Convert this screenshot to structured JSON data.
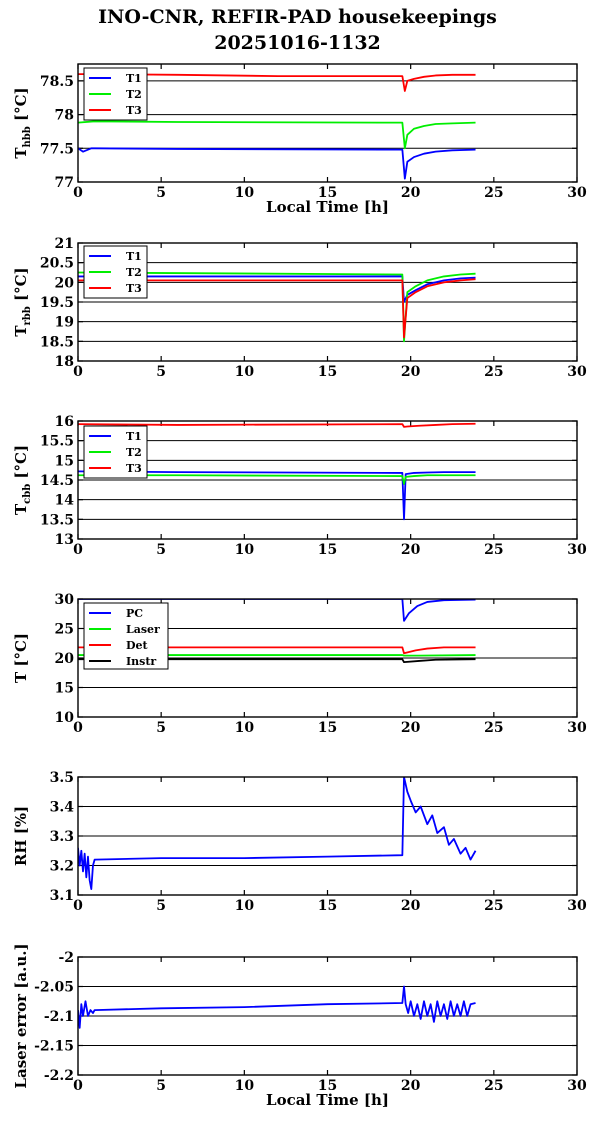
{
  "title": {
    "line1": "INO-CNR, REFIR-PAD housekeepings",
    "line2": "20251016-1132"
  },
  "chart_data": [
    {
      "type": "line",
      "ylabel": "T",
      "ylabel_sub": "hbb",
      "ylabel_unit": "[°C]",
      "xlabel": "Local Time [h]",
      "xlim": [
        0,
        30
      ],
      "ylim": [
        77,
        78.75
      ],
      "xticks": [
        0,
        5,
        10,
        15,
        20,
        25,
        30
      ],
      "yticks": [
        77,
        77.5,
        78,
        78.5
      ],
      "ytick_labels": [
        "77",
        "77.5",
        "78",
        "78.5"
      ],
      "grid": true,
      "legend": "top-left",
      "series": [
        {
          "name": "T1",
          "color": "#0000ff",
          "x": [
            0,
            0.3,
            0.8,
            1,
            6,
            19.5,
            19.65,
            19.8,
            20.2,
            20.8,
            21.5,
            22.5,
            23.9
          ],
          "y": [
            77.5,
            77.45,
            77.5,
            77.5,
            77.49,
            77.48,
            77.05,
            77.3,
            77.37,
            77.42,
            77.45,
            77.47,
            77.48
          ]
        },
        {
          "name": "T2",
          "color": "#00ee00",
          "x": [
            0,
            1,
            6,
            19.5,
            19.65,
            19.8,
            20.2,
            20.8,
            21.5,
            22.5,
            23.9
          ],
          "y": [
            77.88,
            77.9,
            77.89,
            77.88,
            77.5,
            77.7,
            77.79,
            77.83,
            77.86,
            77.87,
            77.88
          ]
        },
        {
          "name": "T3",
          "color": "#ff0000",
          "x": [
            0,
            1,
            6,
            12,
            19.5,
            19.65,
            19.8,
            20.2,
            20.8,
            21.5,
            22.5,
            23.9
          ],
          "y": [
            78.6,
            78.6,
            78.59,
            78.57,
            78.57,
            78.35,
            78.5,
            78.53,
            78.56,
            78.58,
            78.59,
            78.59
          ]
        }
      ]
    },
    {
      "type": "line",
      "ylabel": "T",
      "ylabel_sub": "rbb",
      "ylabel_unit": "[°C]",
      "xlabel": "",
      "xlim": [
        0,
        30
      ],
      "ylim": [
        18,
        21
      ],
      "xticks": [
        0,
        5,
        10,
        15,
        20,
        25,
        30
      ],
      "yticks": [
        18,
        18.5,
        19,
        19.5,
        20,
        20.5,
        21
      ],
      "ytick_labels": [
        "18",
        "18.5",
        "19",
        "19.5",
        "20",
        "20.5",
        "21"
      ],
      "grid": true,
      "legend": "top-left",
      "series": [
        {
          "name": "T1",
          "color": "#0000ff",
          "x": [
            0,
            19.5,
            19.6,
            19.8,
            20.3,
            21,
            22,
            23,
            23.9
          ],
          "y": [
            20.15,
            20.15,
            19.5,
            19.68,
            19.8,
            19.95,
            20.05,
            20.1,
            20.12
          ]
        },
        {
          "name": "T2",
          "color": "#00ee00",
          "x": [
            0,
            19.5,
            19.6,
            19.8,
            20.3,
            21,
            22,
            23,
            23.9
          ],
          "y": [
            20.25,
            20.2,
            18.5,
            19.75,
            19.9,
            20.05,
            20.15,
            20.2,
            20.22
          ]
        },
        {
          "name": "T3",
          "color": "#ff0000",
          "x": [
            0,
            19.5,
            19.6,
            19.8,
            20.3,
            21,
            22,
            23,
            23.9
          ],
          "y": [
            20.05,
            20.05,
            18.6,
            19.6,
            19.75,
            19.9,
            20.0,
            20.05,
            20.08
          ]
        }
      ]
    },
    {
      "type": "line",
      "ylabel": "T",
      "ylabel_sub": "cbb",
      "ylabel_unit": "[°C]",
      "xlabel": "",
      "xlim": [
        0,
        30
      ],
      "ylim": [
        13,
        16
      ],
      "xticks": [
        0,
        5,
        10,
        15,
        20,
        25,
        30
      ],
      "yticks": [
        13,
        13.5,
        14,
        14.5,
        15,
        15.5,
        16
      ],
      "ytick_labels": [
        "13",
        "13.5",
        "14",
        "14.5",
        "15",
        "15.5",
        "16"
      ],
      "grid": true,
      "legend": "top-left",
      "series": [
        {
          "name": "T1",
          "color": "#0000ff",
          "x": [
            0,
            6,
            19.5,
            19.6,
            19.7,
            20.2,
            21,
            22,
            23.9
          ],
          "y": [
            14.72,
            14.7,
            14.68,
            13.5,
            14.65,
            14.68,
            14.69,
            14.7,
            14.7
          ]
        },
        {
          "name": "T2",
          "color": "#00ee00",
          "x": [
            0,
            6,
            19.5,
            19.6,
            19.7,
            20.2,
            21,
            22,
            23.9
          ],
          "y": [
            14.62,
            14.62,
            14.6,
            14.4,
            14.58,
            14.6,
            14.62,
            14.62,
            14.62
          ]
        },
        {
          "name": "T3",
          "color": "#ff0000",
          "x": [
            0,
            6,
            19.5,
            19.6,
            19.8,
            20.5,
            21.5,
            22.5,
            23.9
          ],
          "y": [
            15.92,
            15.9,
            15.92,
            15.85,
            15.86,
            15.88,
            15.9,
            15.92,
            15.93
          ]
        }
      ]
    },
    {
      "type": "line",
      "ylabel": "T [°C]",
      "ylabel_sub": "",
      "ylabel_unit": "",
      "xlabel": "",
      "xlim": [
        0,
        30
      ],
      "ylim": [
        10,
        30
      ],
      "xticks": [
        0,
        5,
        10,
        15,
        20,
        25,
        30
      ],
      "yticks": [
        10,
        15,
        20,
        25,
        30
      ],
      "ytick_labels": [
        "10",
        "15",
        "20",
        "25",
        "30"
      ],
      "grid": true,
      "legend": "top-left",
      "series": [
        {
          "name": "PC",
          "color": "#0000ff",
          "x": [
            0,
            19.5,
            19.6,
            19.9,
            20.4,
            21,
            22,
            23.9
          ],
          "y": [
            30,
            30,
            26.3,
            27.6,
            28.8,
            29.5,
            29.8,
            29.9
          ]
        },
        {
          "name": "Laser",
          "color": "#00ee00",
          "x": [
            0,
            19.5,
            19.6,
            20.5,
            23.9
          ],
          "y": [
            20.5,
            20.5,
            20.4,
            20.4,
            20.5
          ]
        },
        {
          "name": "Det",
          "color": "#ff0000",
          "x": [
            0,
            12,
            19.5,
            19.6,
            20.3,
            21,
            22,
            23.9
          ],
          "y": [
            21.8,
            21.8,
            21.8,
            20.8,
            21.3,
            21.6,
            21.8,
            21.8
          ]
        },
        {
          "name": "Instr",
          "color": "#000000",
          "x": [
            0,
            19.5,
            19.6,
            20.5,
            21.5,
            23.9
          ],
          "y": [
            19.8,
            19.8,
            19.3,
            19.5,
            19.7,
            19.8
          ]
        }
      ]
    },
    {
      "type": "line",
      "ylabel": "RH [%]",
      "ylabel_sub": "",
      "ylabel_unit": "",
      "xlabel": "",
      "xlim": [
        0,
        30
      ],
      "ylim": [
        3.1,
        3.5
      ],
      "xticks": [
        0,
        5,
        10,
        15,
        20,
        25,
        30
      ],
      "yticks": [
        3.1,
        3.2,
        3.3,
        3.4,
        3.5
      ],
      "ytick_labels": [
        "3.1",
        "3.2",
        "3.3",
        "3.4",
        "3.5"
      ],
      "grid": true,
      "legend": "none",
      "series": [
        {
          "name": "",
          "color": "#0000ff",
          "x": [
            0,
            0.1,
            0.2,
            0.3,
            0.4,
            0.5,
            0.6,
            0.7,
            0.8,
            0.9,
            1,
            5,
            10,
            15,
            19.5,
            19.6,
            19.8,
            20,
            20.3,
            20.6,
            21,
            21.3,
            21.6,
            22,
            22.3,
            22.6,
            23,
            23.3,
            23.6,
            23.9
          ],
          "y": [
            3.26,
            3.2,
            3.25,
            3.18,
            3.24,
            3.16,
            3.23,
            3.15,
            3.12,
            3.2,
            3.22,
            3.225,
            3.225,
            3.23,
            3.235,
            3.5,
            3.45,
            3.42,
            3.38,
            3.4,
            3.34,
            3.37,
            3.31,
            3.33,
            3.27,
            3.29,
            3.24,
            3.26,
            3.22,
            3.25
          ]
        }
      ]
    },
    {
      "type": "line",
      "ylabel": "Laser error [a.u.]",
      "ylabel_sub": "",
      "ylabel_unit": "",
      "xlabel": "Local Time [h]",
      "xlim": [
        0,
        30
      ],
      "ylim": [
        -2.2,
        -2.0
      ],
      "xticks": [
        0,
        5,
        10,
        15,
        20,
        25,
        30
      ],
      "yticks": [
        -2.2,
        -2.15,
        -2.1,
        -2.05,
        -2.0
      ],
      "ytick_labels": [
        "-2.2",
        "-2.15",
        "-2.1",
        "-2.05",
        "-2"
      ],
      "grid": true,
      "legend": "none",
      "series": [
        {
          "name": "",
          "color": "#0000ff",
          "x": [
            0,
            0.1,
            0.2,
            0.3,
            0.45,
            0.6,
            0.75,
            0.9,
            1,
            5,
            10,
            15,
            19.5,
            19.6,
            19.7,
            19.85,
            20,
            20.2,
            20.4,
            20.6,
            20.8,
            21,
            21.2,
            21.4,
            21.6,
            21.8,
            22,
            22.2,
            22.4,
            22.6,
            22.8,
            23,
            23.2,
            23.4,
            23.6,
            23.9
          ],
          "y": [
            -2.09,
            -2.12,
            -2.08,
            -2.1,
            -2.075,
            -2.1,
            -2.09,
            -2.095,
            -2.09,
            -2.087,
            -2.085,
            -2.08,
            -2.078,
            -2.05,
            -2.08,
            -2.095,
            -2.075,
            -2.1,
            -2.08,
            -2.105,
            -2.075,
            -2.1,
            -2.08,
            -2.11,
            -2.075,
            -2.1,
            -2.08,
            -2.105,
            -2.075,
            -2.1,
            -2.08,
            -2.1,
            -2.075,
            -2.1,
            -2.08,
            -2.078
          ]
        }
      ]
    }
  ]
}
